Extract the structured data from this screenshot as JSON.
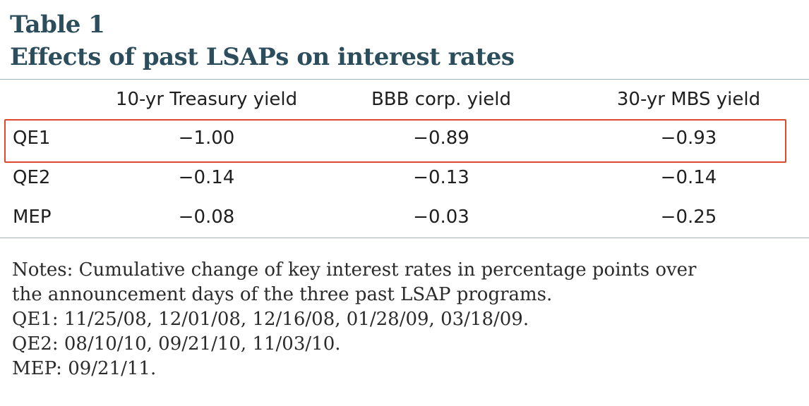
{
  "title": {
    "line1": "Table 1",
    "line2": "Effects of past LSAPs on interest rates"
  },
  "table": {
    "headers": [
      "",
      "10-yr Treasury yield",
      "BBB corp. yield",
      "30-yr MBS yield"
    ],
    "rows": [
      {
        "label": "QE1",
        "values": [
          "−1.00",
          "−0.89",
          "−0.93"
        ]
      },
      {
        "label": "QE2",
        "values": [
          "−0.14",
          "−0.13",
          "−0.14"
        ]
      },
      {
        "label": "MEP",
        "values": [
          "−0.08",
          "−0.03",
          "−0.25"
        ]
      }
    ],
    "highlighted_row": "QE1"
  },
  "colors": {
    "title": "#2c4d5c",
    "rule": "#9fb3bc",
    "highlight_border": "#e0472f"
  },
  "notes": {
    "lines": [
      "Notes: Cumulative change of key interest rates in percentage points over",
      "the announcement days of the three past LSAP programs.",
      "QE1: 11/25/08, 12/01/08, 12/16/08, 01/28/09, 03/18/09.",
      "QE2: 08/10/10, 09/21/10, 11/03/10.",
      "MEP: 09/21/11."
    ]
  }
}
